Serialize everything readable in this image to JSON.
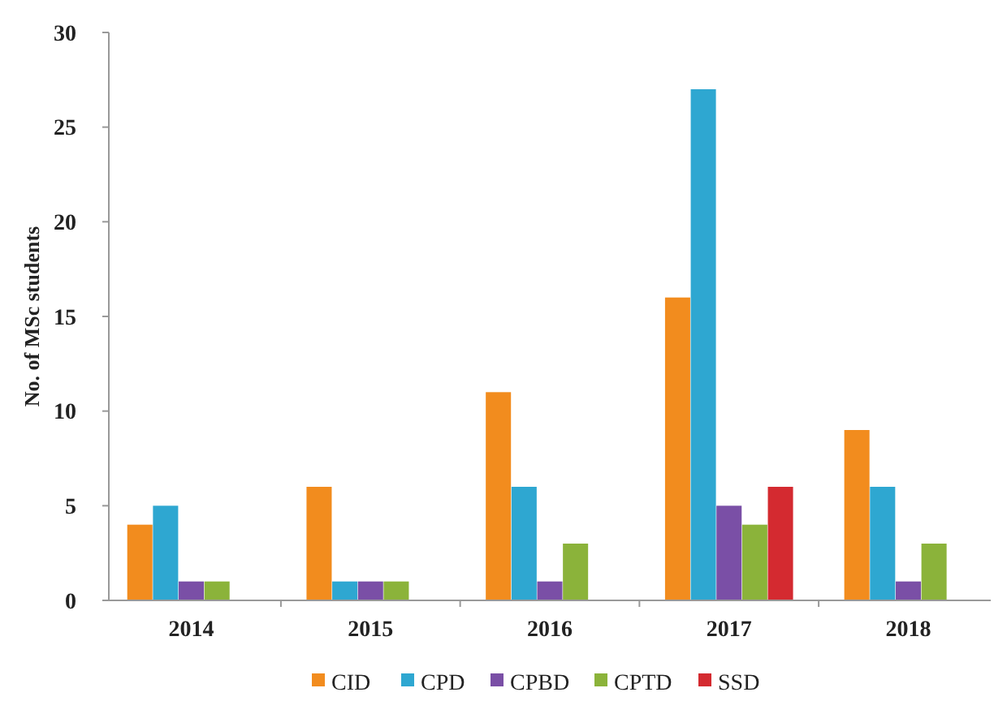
{
  "chart_data": {
    "type": "bar",
    "ylabel": "No. of MSc students",
    "categories": [
      "2014",
      "2015",
      "2016",
      "2017",
      "2018"
    ],
    "series": [
      {
        "name": "CID",
        "color": "#f28c1e",
        "values": [
          4,
          6,
          11,
          16,
          9
        ]
      },
      {
        "name": "CPD",
        "color": "#2ea7d1",
        "values": [
          5,
          1,
          6,
          27,
          6
        ]
      },
      {
        "name": "CPBD",
        "color": "#7a4fa6",
        "values": [
          1,
          1,
          1,
          5,
          1
        ]
      },
      {
        "name": "CPTD",
        "color": "#8bb33a",
        "values": [
          1,
          1,
          3,
          4,
          3
        ]
      },
      {
        "name": "SSD",
        "color": "#d42a30",
        "values": [
          null,
          null,
          null,
          6,
          null
        ]
      }
    ],
    "ylim": [
      0,
      30
    ],
    "yticks": [
      0,
      5,
      10,
      15,
      20,
      25,
      30
    ],
    "grid": false,
    "legend": "bottom"
  }
}
